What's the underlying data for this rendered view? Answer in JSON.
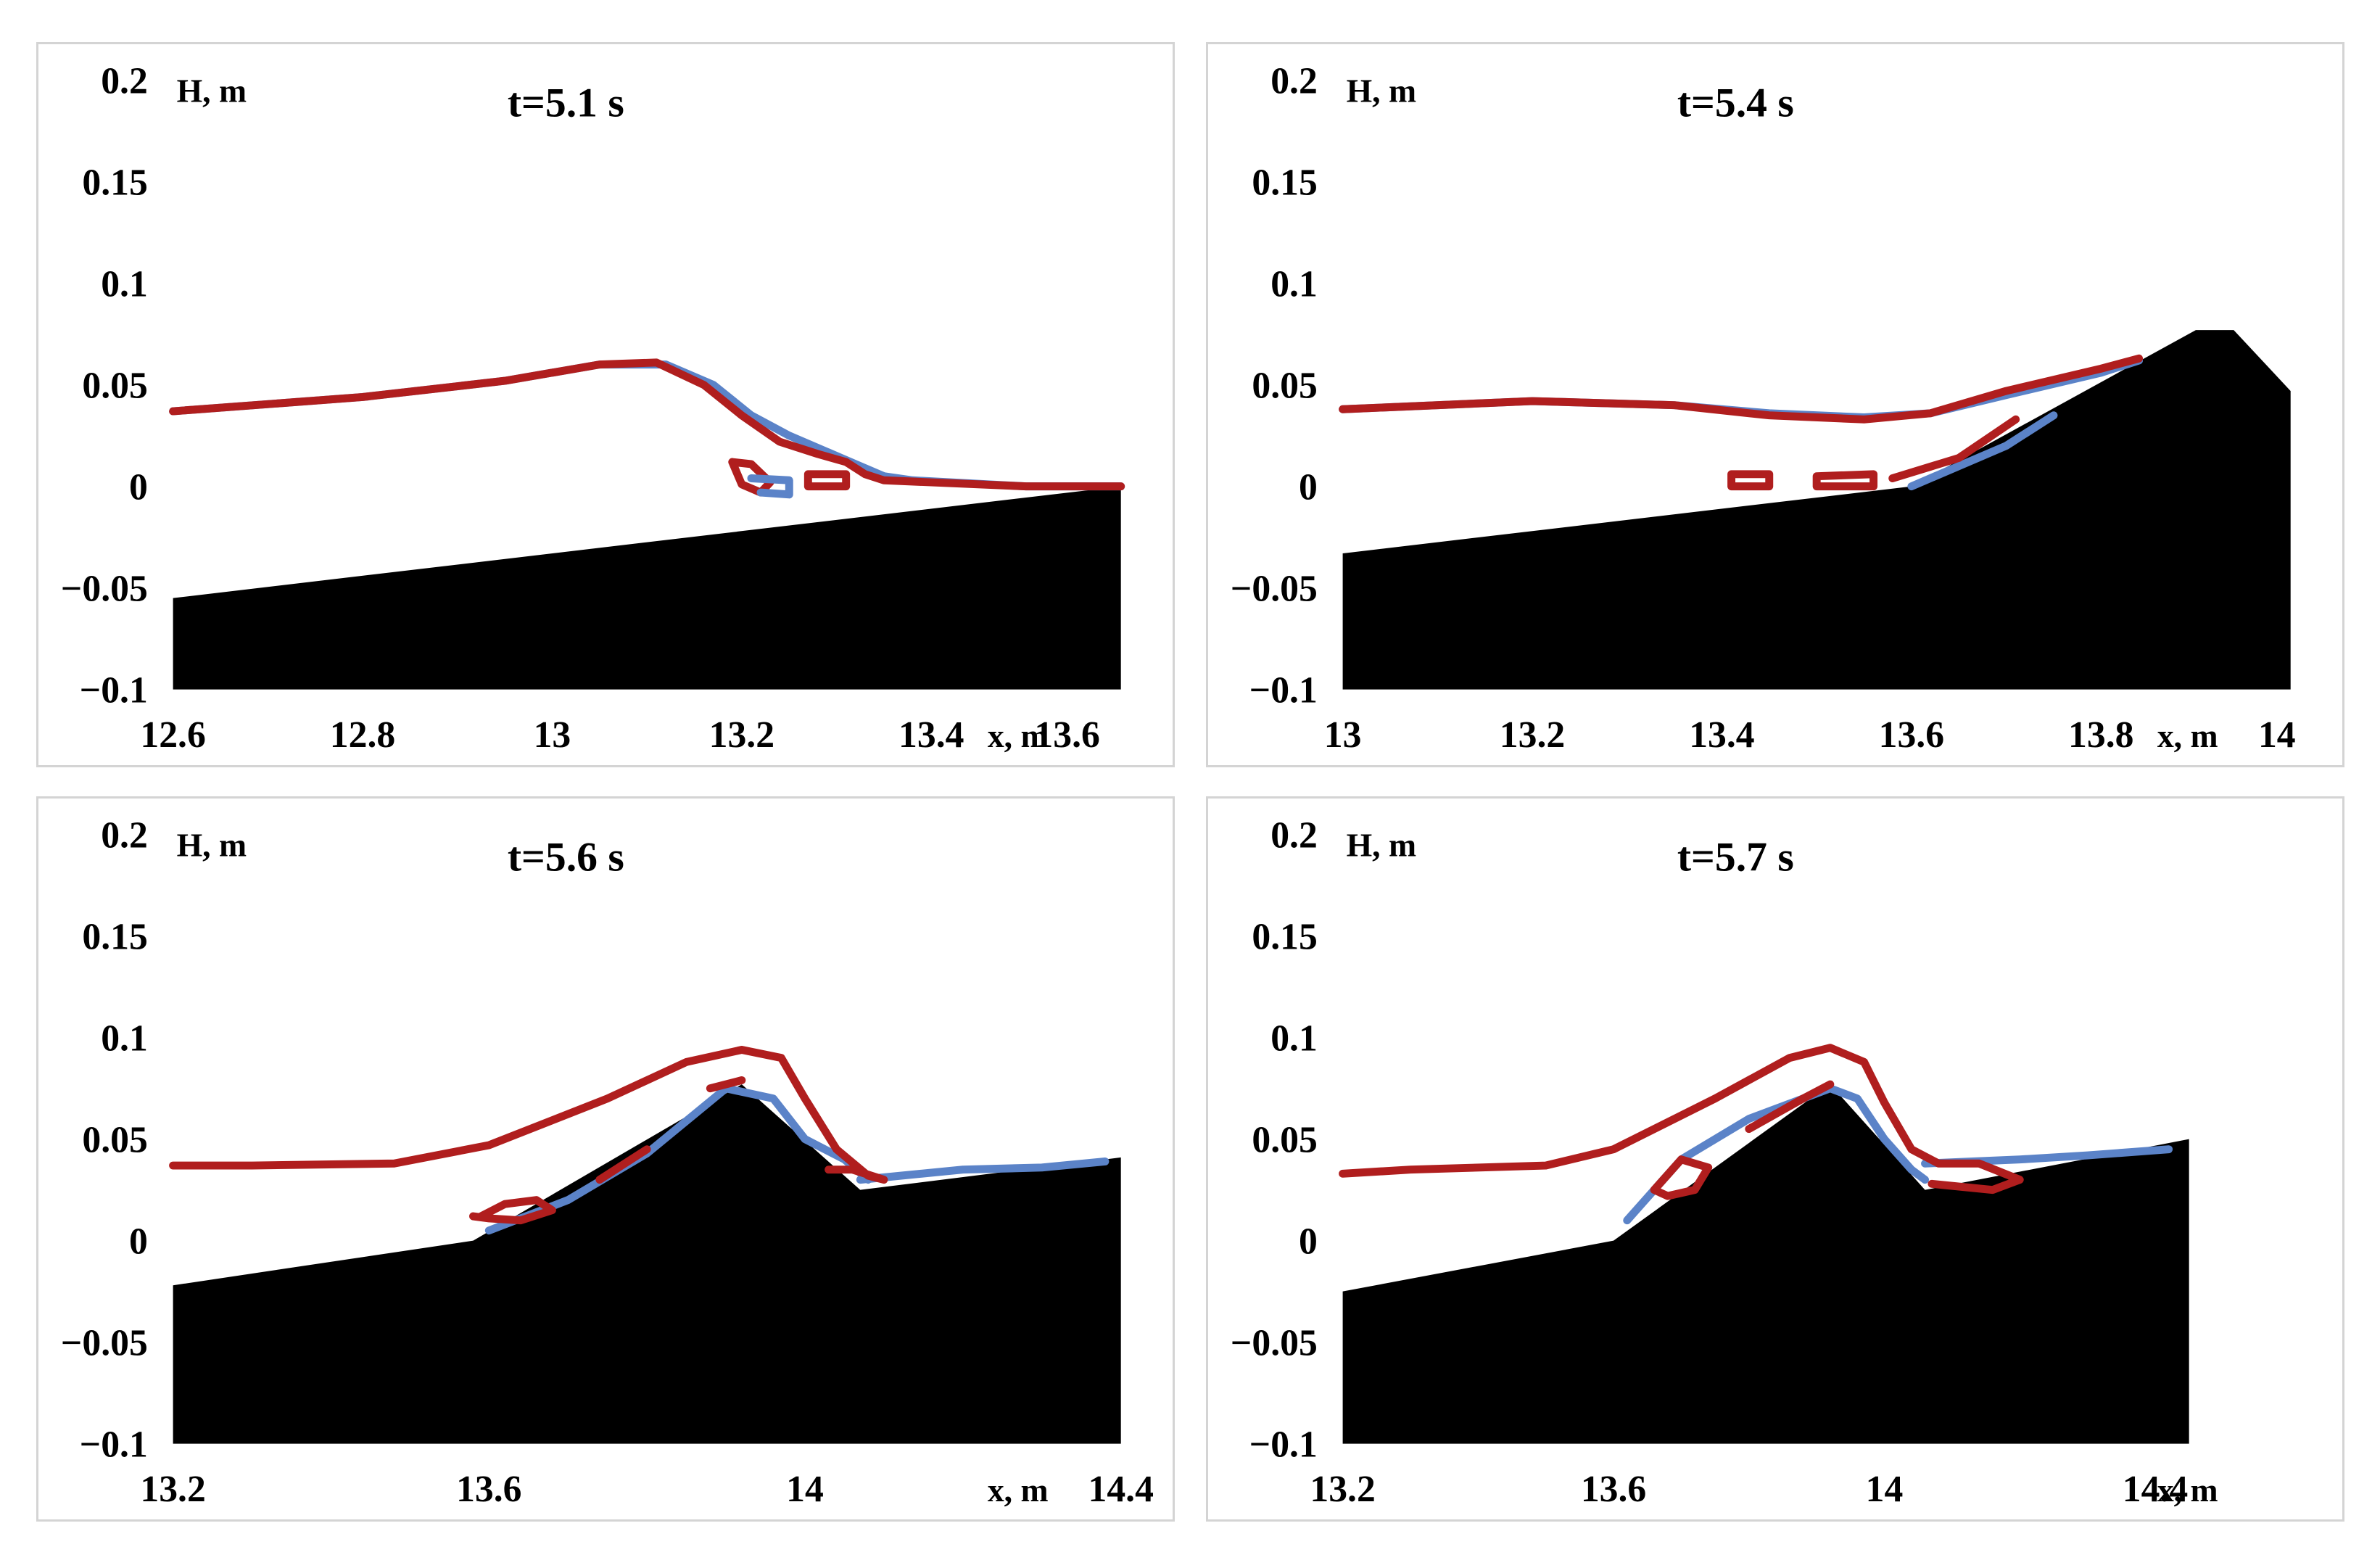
{
  "colors": {
    "ground": "#000000",
    "series_blue": "#5b83c8",
    "series_red": "#b01e1e"
  },
  "chart_data": [
    {
      "type": "line",
      "title": "t=5.1 s",
      "ylabel": "H, m",
      "xlabel": "x, m",
      "xlim": [
        12.6,
        13.6
      ],
      "ylim": [
        -0.1,
        0.2
      ],
      "xticks": [
        12.6,
        12.8,
        13,
        13.2,
        13.4
      ],
      "xtick_labels": [
        "12.6",
        "12.8",
        "13",
        "13.2",
        "13.4"
      ],
      "xlabel_suffix": "13.6",
      "yticks": [
        0.2,
        0.15,
        0.1,
        0.05,
        0,
        -0.05,
        -0.1
      ],
      "ytick_labels": [
        "0.2",
        "0.15",
        "0.1",
        "0.05",
        "0",
        "−0.05",
        "−0.1"
      ],
      "bottom": [
        [
          12.6,
          -0.055
        ],
        [
          13.6,
          0.0
        ]
      ],
      "series": [
        {
          "name": "blue",
          "color": "#5b83c8",
          "points": [
            [
              12.6,
              0.037
            ],
            [
              12.8,
              0.044
            ],
            [
              12.95,
              0.052
            ],
            [
              13.05,
              0.06
            ],
            [
              13.12,
              0.06
            ],
            [
              13.17,
              0.05
            ],
            [
              13.21,
              0.035
            ],
            [
              13.25,
              0.025
            ],
            [
              13.3,
              0.015
            ],
            [
              13.35,
              0.005
            ],
            [
              13.38,
              0.003
            ],
            [
              13.5,
              0.0
            ],
            [
              13.6,
              0.0
            ]
          ]
        },
        {
          "name": "red",
          "color": "#b01e1e",
          "points": [
            [
              12.6,
              0.037
            ],
            [
              12.8,
              0.044
            ],
            [
              12.95,
              0.052
            ],
            [
              13.05,
              0.06
            ],
            [
              13.11,
              0.061
            ],
            [
              13.16,
              0.05
            ],
            [
              13.2,
              0.035
            ],
            [
              13.24,
              0.022
            ],
            [
              13.28,
              0.016
            ],
            [
              13.31,
              0.012
            ],
            [
              13.33,
              0.006
            ],
            [
              13.35,
              0.003
            ],
            [
              13.5,
              0.0
            ],
            [
              13.6,
              0.0
            ]
          ]
        },
        {
          "name": "red",
          "color": "#b01e1e",
          "points": [
            [
              13.19,
              0.012
            ],
            [
              13.21,
              0.011
            ],
            [
              13.23,
              0.002
            ],
            [
              13.22,
              -0.003
            ],
            [
              13.2,
              0.001
            ],
            [
              13.19,
              0.012
            ]
          ]
        },
        {
          "name": "blue",
          "color": "#5b83c8",
          "points": [
            [
              13.21,
              0.004
            ],
            [
              13.25,
              0.003
            ],
            [
              13.25,
              -0.004
            ],
            [
              13.22,
              -0.003
            ]
          ]
        },
        {
          "name": "red",
          "color": "#b01e1e",
          "points": [
            [
              13.27,
              0.006
            ],
            [
              13.31,
              0.006
            ],
            [
              13.31,
              0.0
            ],
            [
              13.27,
              0.0
            ],
            [
              13.27,
              0.006
            ]
          ]
        }
      ]
    },
    {
      "type": "line",
      "title": "t=5.4 s",
      "ylabel": "H, m",
      "xlabel": "x, m",
      "xlim": [
        13,
        14
      ],
      "ylim": [
        -0.1,
        0.2
      ],
      "xticks": [
        13,
        13.2,
        13.4,
        13.6,
        13.8
      ],
      "xtick_labels": [
        "13",
        "13.2",
        "13.4",
        "13.6",
        "13.8"
      ],
      "xlabel_suffix": "14",
      "yticks": [
        0.2,
        0.15,
        0.1,
        0.05,
        0,
        -0.05,
        -0.1
      ],
      "ytick_labels": [
        "0.2",
        "0.15",
        "0.1",
        "0.05",
        "0",
        "−0.05",
        "−0.1"
      ],
      "bottom": [
        [
          13.0,
          -0.033
        ],
        [
          13.6,
          0.0
        ],
        [
          13.9,
          0.077
        ],
        [
          13.94,
          0.077
        ],
        [
          14.0,
          0.047
        ]
      ],
      "series": [
        {
          "name": "blue",
          "color": "#5b83c8",
          "points": [
            [
              13.0,
              0.038
            ],
            [
              13.2,
              0.042
            ],
            [
              13.35,
              0.04
            ],
            [
              13.45,
              0.036
            ],
            [
              13.55,
              0.034
            ],
            [
              13.62,
              0.036
            ],
            [
              13.7,
              0.045
            ],
            [
              13.8,
              0.056
            ],
            [
              13.84,
              0.062
            ]
          ]
        },
        {
          "name": "red",
          "color": "#b01e1e",
          "points": [
            [
              13.0,
              0.038
            ],
            [
              13.2,
              0.042
            ],
            [
              13.35,
              0.04
            ],
            [
              13.45,
              0.035
            ],
            [
              13.55,
              0.033
            ],
            [
              13.62,
              0.036
            ],
            [
              13.7,
              0.047
            ],
            [
              13.8,
              0.058
            ],
            [
              13.84,
              0.063
            ]
          ]
        },
        {
          "name": "blue",
          "color": "#5b83c8",
          "points": [
            [
              13.6,
              0.0
            ],
            [
              13.7,
              0.02
            ],
            [
              13.75,
              0.035
            ]
          ]
        },
        {
          "name": "red",
          "color": "#b01e1e",
          "points": [
            [
              13.58,
              0.004
            ],
            [
              13.65,
              0.014
            ],
            [
              13.71,
              0.033
            ]
          ]
        },
        {
          "name": "red",
          "color": "#b01e1e",
          "points": [
            [
              13.41,
              0.006
            ],
            [
              13.45,
              0.006
            ],
            [
              13.45,
              0.0
            ],
            [
              13.41,
              0.0
            ],
            [
              13.41,
              0.006
            ]
          ]
        },
        {
          "name": "red",
          "color": "#b01e1e",
          "points": [
            [
              13.5,
              0.005
            ],
            [
              13.56,
              0.006
            ],
            [
              13.56,
              0.0
            ],
            [
              13.5,
              0.0
            ],
            [
              13.5,
              0.005
            ]
          ]
        }
      ]
    },
    {
      "type": "line",
      "title": "t=5.6 s",
      "ylabel": "H, m",
      "xlabel": "x, m",
      "xlim": [
        13.2,
        14.4
      ],
      "ylim": [
        -0.1,
        0.2
      ],
      "xticks": [
        13.2,
        13.6,
        14,
        14.4
      ],
      "xtick_labels": [
        "13.2",
        "13.6",
        "14",
        "14.4"
      ],
      "yticks": [
        0.2,
        0.15,
        0.1,
        0.05,
        0,
        -0.05,
        -0.1
      ],
      "ytick_labels": [
        "0.2",
        "0.15",
        "0.1",
        "0.05",
        "0",
        "−0.05",
        "−0.1"
      ],
      "bottom": [
        [
          13.2,
          -0.022
        ],
        [
          13.58,
          0.0
        ],
        [
          13.92,
          0.077
        ],
        [
          14.07,
          0.025
        ],
        [
          14.4,
          0.041
        ]
      ],
      "series": [
        {
          "name": "blue",
          "color": "#5b83c8",
          "points": [
            [
              14.07,
              0.03
            ],
            [
              14.2,
              0.035
            ],
            [
              14.3,
              0.036
            ],
            [
              14.38,
              0.039
            ]
          ]
        },
        {
          "name": "blue",
          "color": "#5b83c8",
          "points": [
            [
              13.6,
              0.005
            ],
            [
              13.7,
              0.02
            ],
            [
              13.8,
              0.043
            ],
            [
              13.9,
              0.075
            ],
            [
              13.96,
              0.07
            ],
            [
              14.0,
              0.05
            ],
            [
              14.05,
              0.04
            ],
            [
              14.08,
              0.03
            ]
          ]
        },
        {
          "name": "red",
          "color": "#b01e1e",
          "points": [
            [
              13.2,
              0.037
            ],
            [
              13.3,
              0.037
            ],
            [
              13.48,
              0.038
            ],
            [
              13.6,
              0.047
            ],
            [
              13.75,
              0.07
            ],
            [
              13.85,
              0.088
            ],
            [
              13.92,
              0.094
            ],
            [
              13.97,
              0.09
            ],
            [
              14.0,
              0.07
            ],
            [
              14.04,
              0.045
            ],
            [
              14.08,
              0.032
            ],
            [
              14.1,
              0.03
            ],
            [
              14.06,
              0.035
            ],
            [
              14.03,
              0.035
            ]
          ]
        },
        {
          "name": "red",
          "color": "#b01e1e",
          "points": [
            [
              13.74,
              0.03
            ],
            [
              13.8,
              0.045
            ]
          ]
        },
        {
          "name": "red",
          "color": "#b01e1e",
          "points": [
            [
              13.59,
              0.012
            ],
            [
              13.62,
              0.018
            ],
            [
              13.66,
              0.02
            ],
            [
              13.68,
              0.015
            ],
            [
              13.64,
              0.01
            ],
            [
              13.6,
              0.011
            ],
            [
              13.58,
              0.012
            ]
          ]
        },
        {
          "name": "red",
          "color": "#b01e1e",
          "points": [
            [
              13.88,
              0.075
            ],
            [
              13.92,
              0.079
            ]
          ]
        }
      ]
    },
    {
      "type": "line",
      "title": "t=5.7 s",
      "ylabel": "H, m",
      "xlabel": "x, m",
      "xlim": [
        13.2,
        14.6
      ],
      "ylim": [
        -0.1,
        0.2
      ],
      "xticks": [
        13.2,
        13.6,
        14,
        14.4
      ],
      "xtick_labels": [
        "13.2",
        "13.6",
        "14",
        "14.4"
      ],
      "yticks": [
        0.2,
        0.15,
        0.1,
        0.05,
        0,
        -0.05,
        -0.1
      ],
      "ytick_labels": [
        "0.2",
        "0.15",
        "0.1",
        "0.05",
        "0",
        "−0.05",
        "−0.1"
      ],
      "bottom": [
        [
          13.2,
          -0.025
        ],
        [
          13.6,
          0.0
        ],
        [
          13.92,
          0.077
        ],
        [
          14.06,
          0.025
        ],
        [
          14.45,
          0.05
        ]
      ],
      "series": [
        {
          "name": "blue",
          "color": "#5b83c8",
          "points": [
            [
              14.06,
              0.038
            ],
            [
              14.2,
              0.04
            ],
            [
              14.3,
              0.042
            ],
            [
              14.42,
              0.045
            ]
          ]
        },
        {
          "name": "blue",
          "color": "#5b83c8",
          "points": [
            [
              13.62,
              0.01
            ],
            [
              13.7,
              0.04
            ],
            [
              13.8,
              0.06
            ],
            [
              13.92,
              0.075
            ],
            [
              13.96,
              0.07
            ],
            [
              14.0,
              0.05
            ],
            [
              14.04,
              0.035
            ],
            [
              14.06,
              0.03
            ]
          ]
        },
        {
          "name": "red",
          "color": "#b01e1e",
          "points": [
            [
              13.2,
              0.033
            ],
            [
              13.3,
              0.035
            ],
            [
              13.5,
              0.037
            ],
            [
              13.6,
              0.045
            ],
            [
              13.75,
              0.07
            ],
            [
              13.86,
              0.09
            ],
            [
              13.92,
              0.095
            ],
            [
              13.97,
              0.088
            ],
            [
              14.0,
              0.068
            ],
            [
              14.04,
              0.045
            ],
            [
              14.08,
              0.038
            ],
            [
              14.14,
              0.038
            ],
            [
              14.2,
              0.03
            ],
            [
              14.16,
              0.025
            ],
            [
              14.07,
              0.028
            ]
          ]
        },
        {
          "name": "red",
          "color": "#b01e1e",
          "points": [
            [
              13.66,
              0.025
            ],
            [
              13.7,
              0.04
            ],
            [
              13.74,
              0.036
            ],
            [
              13.72,
              0.025
            ],
            [
              13.68,
              0.022
            ],
            [
              13.66,
              0.025
            ]
          ]
        },
        {
          "name": "red",
          "color": "#b01e1e",
          "points": [
            [
              13.8,
              0.055
            ],
            [
              13.88,
              0.07
            ],
            [
              13.92,
              0.077
            ]
          ]
        }
      ]
    }
  ]
}
